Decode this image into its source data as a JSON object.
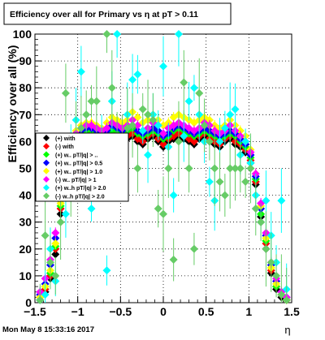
{
  "chart_data": {
    "type": "scatter",
    "title": "Efficiency over all for Primary vs  η at pT > 0.11",
    "xlabel": "η",
    "ylabel": "Efficiency over all (%)",
    "xlim": [
      -1.5,
      1.5
    ],
    "ylim": [
      0,
      100
    ],
    "x_ticks": [
      "−1.5",
      "−1",
      "−0.5",
      "0",
      "0.5",
      "1",
      "1.5"
    ],
    "y_ticks": [
      "0",
      "10",
      "20",
      "30",
      "40",
      "50",
      "60",
      "70",
      "80",
      "90",
      "100"
    ],
    "grid": true,
    "legend_position": "left-middle",
    "timestamp": "Mon May  8 15:33:16 2017",
    "series": [
      {
        "name": "(+) with",
        "color": "#000000",
        "x": [
          -1.44,
          -1.38,
          -1.32,
          -1.26,
          -1.2,
          -1.14,
          -1.08,
          -1.02,
          -0.96,
          -0.9,
          -0.84,
          -0.78,
          -0.72,
          -0.66,
          -0.6,
          -0.54,
          -0.48,
          -0.42,
          -0.36,
          -0.3,
          -0.24,
          -0.18,
          -0.12,
          -0.06,
          0.0,
          0.06,
          0.12,
          0.18,
          0.24,
          0.3,
          0.36,
          0.42,
          0.48,
          0.54,
          0.6,
          0.66,
          0.72,
          0.78,
          0.84,
          0.9,
          0.96,
          1.02,
          1.08,
          1.14,
          1.2,
          1.26,
          1.32,
          1.38,
          1.44
        ],
        "y": [
          1,
          4,
          9,
          18,
          33,
          47,
          55,
          58,
          60,
          61,
          62,
          61,
          59,
          60,
          62,
          61,
          60,
          61,
          62,
          60,
          59,
          61,
          62,
          60,
          58,
          60,
          61,
          62,
          61,
          60,
          59,
          61,
          62,
          60,
          59,
          58,
          60,
          61,
          59,
          58,
          56,
          52,
          44,
          32,
          20,
          11,
          5,
          2,
          1
        ]
      },
      {
        "name": "(-) with",
        "color": "#ff0000",
        "x": [
          -1.44,
          -1.38,
          -1.32,
          -1.26,
          -1.2,
          -1.14,
          -1.08,
          -1.02,
          -0.96,
          -0.9,
          -0.84,
          -0.78,
          -0.72,
          -0.66,
          -0.6,
          -0.54,
          -0.48,
          -0.42,
          -0.36,
          -0.3,
          -0.24,
          -0.18,
          -0.12,
          -0.06,
          0.0,
          0.06,
          0.12,
          0.18,
          0.24,
          0.3,
          0.36,
          0.42,
          0.48,
          0.54,
          0.6,
          0.66,
          0.72,
          0.78,
          0.84,
          0.9,
          0.96,
          1.02,
          1.08,
          1.14,
          1.2,
          1.26,
          1.32,
          1.38,
          1.44
        ],
        "y": [
          2,
          5,
          10,
          20,
          35,
          48,
          56,
          59,
          61,
          62,
          63,
          62,
          60,
          61,
          63,
          62,
          61,
          62,
          63,
          61,
          60,
          62,
          63,
          61,
          59,
          61,
          62,
          63,
          62,
          61,
          60,
          62,
          63,
          61,
          60,
          59,
          61,
          62,
          60,
          59,
          57,
          53,
          45,
          30,
          22,
          12,
          6,
          3,
          1
        ]
      },
      {
        "name": "(+) w.. pT/|q| > ..",
        "color": "#00ff00",
        "x": [
          -1.44,
          -1.38,
          -1.32,
          -1.26,
          -1.2,
          -1.14,
          -1.08,
          -1.02,
          -0.96,
          -0.9,
          -0.84,
          -0.78,
          -0.72,
          -0.66,
          -0.6,
          -0.54,
          -0.48,
          -0.42,
          -0.36,
          -0.3,
          -0.24,
          -0.18,
          -0.12,
          -0.06,
          0.0,
          0.06,
          0.12,
          0.18,
          0.24,
          0.3,
          0.36,
          0.42,
          0.48,
          0.54,
          0.6,
          0.66,
          0.72,
          0.78,
          0.84,
          0.9,
          0.96,
          1.02,
          1.08,
          1.14,
          1.2,
          1.26,
          1.32,
          1.38,
          1.44
        ],
        "y": [
          1,
          6,
          11,
          21,
          36,
          50,
          58,
          61,
          63,
          64,
          64,
          63,
          62,
          63,
          64,
          64,
          63,
          64,
          65,
          63,
          62,
          63,
          64,
          63,
          61,
          62,
          64,
          65,
          64,
          63,
          62,
          63,
          64,
          63,
          62,
          61,
          62,
          63,
          62,
          60,
          58,
          54,
          46,
          33,
          23,
          13,
          6,
          3,
          1
        ]
      },
      {
        "name": "(+) w.. pT/|q| > 0.5",
        "color": "#0000ff",
        "x": [
          -1.44,
          -1.38,
          -1.32,
          -1.26,
          -1.2,
          -1.14,
          -1.08,
          -1.02,
          -0.96,
          -0.9,
          -0.84,
          -0.78,
          -0.72,
          -0.66,
          -0.6,
          -0.54,
          -0.48,
          -0.42,
          -0.36,
          -0.3,
          -0.24,
          -0.18,
          -0.12,
          -0.06,
          0.0,
          0.06,
          0.12,
          0.18,
          0.24,
          0.3,
          0.36,
          0.42,
          0.48,
          0.54,
          0.6,
          0.66,
          0.72,
          0.78,
          0.84,
          0.9,
          0.96,
          1.02,
          1.08,
          1.14,
          1.2,
          1.26,
          1.32,
          1.38,
          1.44
        ],
        "y": [
          3,
          7,
          14,
          24,
          38,
          51,
          59,
          62,
          64,
          65,
          65,
          64,
          63,
          64,
          66,
          65,
          64,
          65,
          66,
          64,
          63,
          64,
          65,
          64,
          62,
          63,
          65,
          66,
          65,
          64,
          63,
          64,
          65,
          64,
          63,
          62,
          63,
          64,
          63,
          61,
          59,
          55,
          47,
          35,
          25,
          14,
          8,
          4,
          2
        ]
      },
      {
        "name": "(+) w.. pT/|q| > 1.0",
        "color": "#ffff00",
        "x": [
          -1.44,
          -1.38,
          -1.32,
          -1.26,
          -1.2,
          -1.14,
          -1.08,
          -1.02,
          -0.96,
          -0.9,
          -0.84,
          -0.78,
          -0.72,
          -0.66,
          -0.6,
          -0.54,
          -0.48,
          -0.42,
          -0.36,
          -0.3,
          -0.24,
          -0.18,
          -0.12,
          -0.06,
          0.0,
          0.06,
          0.12,
          0.18,
          0.24,
          0.3,
          0.36,
          0.42,
          0.48,
          0.54,
          0.6,
          0.66,
          0.72,
          0.78,
          0.84,
          0.9,
          0.96,
          1.02,
          1.08,
          1.14,
          1.2,
          1.26,
          1.32,
          1.38,
          1.44
        ],
        "y": [
          2,
          6,
          12,
          22,
          37,
          52,
          60,
          64,
          66,
          67,
          67,
          66,
          65,
          67,
          69,
          68,
          67,
          68,
          71,
          69,
          67,
          68,
          70,
          68,
          66,
          67,
          69,
          70,
          69,
          68,
          67,
          68,
          69,
          68,
          66,
          65,
          66,
          68,
          66,
          64,
          62,
          57,
          48,
          36,
          24,
          13,
          7,
          3,
          1
        ]
      },
      {
        "name": "(-) w.. pT/|q| > 1",
        "color": "#ff00ff",
        "x": [
          -1.44,
          -1.38,
          -1.32,
          -1.26,
          -1.2,
          -1.14,
          -1.08,
          -1.02,
          -0.96,
          -0.9,
          -0.84,
          -0.78,
          -0.72,
          -0.66,
          -0.6,
          -0.54,
          -0.48,
          -0.42,
          -0.36,
          -0.3,
          -0.24,
          -0.18,
          -0.12,
          -0.06,
          0.0,
          0.06,
          0.12,
          0.18,
          0.24,
          0.3,
          0.36,
          0.42,
          0.48,
          0.54,
          0.6,
          0.66,
          0.72,
          0.78,
          0.84,
          0.9,
          0.96,
          1.02,
          1.08,
          1.14,
          1.2,
          1.26,
          1.32,
          1.38,
          1.44
        ],
        "y": [
          4,
          9,
          16,
          26,
          40,
          53,
          61,
          63,
          65,
          66,
          66,
          65,
          64,
          65,
          67,
          66,
          65,
          66,
          68,
          66,
          64,
          65,
          67,
          66,
          63,
          65,
          66,
          67,
          66,
          65,
          64,
          65,
          67,
          66,
          64,
          63,
          64,
          66,
          64,
          62,
          60,
          56,
          48,
          37,
          26,
          15,
          9,
          4,
          2
        ]
      },
      {
        "name": "(+) w..h pT/|q| > 2.0",
        "color": "#00ffff",
        "x": [
          -1.44,
          -1.38,
          -1.32,
          -1.26,
          -1.2,
          -1.14,
          -1.08,
          -1.02,
          -0.96,
          -0.9,
          -0.84,
          -0.78,
          -0.72,
          -0.66,
          -0.6,
          -0.54,
          -0.48,
          -0.42,
          -0.36,
          -0.3,
          -0.24,
          -0.18,
          -0.12,
          -0.06,
          0.0,
          0.06,
          0.12,
          0.18,
          0.24,
          0.3,
          0.36,
          0.42,
          0.48,
          0.54,
          0.6,
          0.66,
          0.72,
          0.78,
          0.84,
          0.9,
          0.96,
          1.02,
          1.08,
          1.14,
          1.2,
          1.26,
          1.32,
          1.38,
          1.44
        ],
        "y": [
          1,
          3,
          20,
          8,
          45,
          33,
          60,
          68,
          86,
          62,
          35,
          50,
          62,
          12,
          75,
          100,
          55,
          70,
          83,
          85,
          64,
          55,
          70,
          66,
          88,
          58,
          40,
          100,
          62,
          75,
          80,
          70,
          60,
          45,
          38,
          60,
          65,
          70,
          72,
          55,
          60,
          52,
          40,
          30,
          38,
          25,
          15,
          38,
          5
        ]
      },
      {
        "name": "(-) w..h pT/|q| > 2.0",
        "color": "#66cc66",
        "x": [
          -1.44,
          -1.38,
          -1.32,
          -1.26,
          -1.2,
          -1.14,
          -1.08,
          -1.02,
          -0.96,
          -0.9,
          -0.84,
          -0.78,
          -0.72,
          -0.66,
          -0.6,
          -0.54,
          -0.48,
          -0.42,
          -0.36,
          -0.3,
          -0.24,
          -0.18,
          -0.12,
          -0.06,
          0.0,
          0.06,
          0.12,
          0.18,
          0.24,
          0.3,
          0.36,
          0.42,
          0.48,
          0.54,
          0.6,
          0.66,
          0.72,
          0.78,
          0.84,
          0.9,
          0.96,
          1.02,
          1.08,
          1.14,
          1.2,
          1.26,
          1.32,
          1.38,
          1.44
        ],
        "y": [
          1,
          25,
          15,
          10,
          30,
          78,
          40,
          60,
          65,
          70,
          75,
          75,
          55,
          100,
          80,
          60,
          62,
          65,
          66,
          50,
          72,
          70,
          68,
          35,
          33,
          50,
          16,
          60,
          82,
          50,
          20,
          78,
          66,
          60,
          50,
          45,
          40,
          50,
          50,
          50,
          45,
          50,
          35,
          30,
          20,
          15,
          10,
          3,
          1
        ]
      }
    ]
  }
}
